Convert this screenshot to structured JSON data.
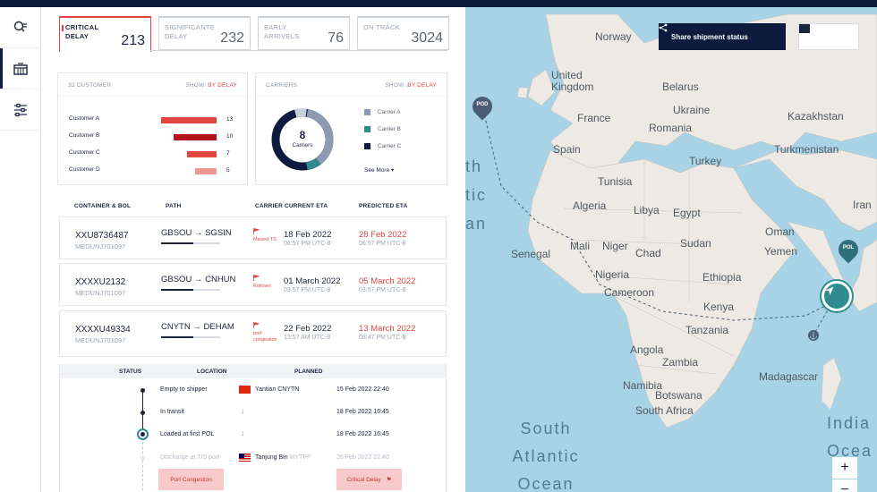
{
  "summary_cards": [
    {
      "label": "Critical delay",
      "value": "213"
    },
    {
      "label": "Significante delay",
      "value": "232"
    },
    {
      "label": "Early arrivels",
      "value": "76"
    },
    {
      "label": "On track",
      "value": "3024"
    }
  ],
  "customers_box": {
    "title": "32 CUSTOMER",
    "show_label": "SHOW:",
    "show_value": "BY DELAY",
    "items": [
      {
        "name": "Customer A",
        "value": 13,
        "color": "#e0453f"
      },
      {
        "name": "Customer B",
        "value": 10,
        "color": "#b3131b"
      },
      {
        "name": "Customer C",
        "value": 7,
        "color": "#e0453f"
      },
      {
        "name": "Customer D",
        "value": 5,
        "color": "#f19591"
      }
    ]
  },
  "carriers_box": {
    "title": "CARRIERS",
    "show_label": "SHOW:",
    "show_value": "BY DELAY",
    "donut_count": "8",
    "donut_label": "Carriers",
    "items": [
      {
        "name": "Carrier A",
        "color": "#8c9ab2"
      },
      {
        "name": "Carrier B",
        "color": "#2f8b8f"
      },
      {
        "name": "Carrier C",
        "color": "#0d1b3e"
      }
    ],
    "see_more": "See More"
  },
  "table": {
    "headers": [
      "CONTAINER & BOL",
      "PATH",
      "CARRIER CURRENT ETA",
      "PREDICTED ETA"
    ],
    "rows": [
      {
        "container": "XXU8736487",
        "bol": "MEDUNJ701097",
        "from": "GBSOU",
        "to": "SGSIN",
        "flag_text": "Missed TS",
        "eta_date": "18 Feb 2022",
        "eta_time": "06:57 PM UTC-8",
        "pred_date": "28 Feb 2022",
        "pred_time": "06:57 PM UTC-8"
      },
      {
        "container": "XXXXU2132",
        "bol": "MEDUNJ701097",
        "from": "GBSOU",
        "to": "CNHUN",
        "flag_text": "Rollover",
        "eta_date": "01 March 2022",
        "eta_time": "03:57 PM UTC-8",
        "pred_date": "05 March 2022",
        "pred_time": "03:57 PM UTC-8"
      },
      {
        "container": "XXXXU49334",
        "bol": "MEDUNJ701097",
        "from": "CNYTN",
        "to": "DEHAM",
        "flag_text": "port congestion",
        "eta_date": "22 Feb 2022",
        "eta_time": "13:57 AM UTC-8",
        "pred_date": "13 March 2022",
        "pred_time": "08:47 PM UTC-8"
      }
    ]
  },
  "detail": {
    "headers": [
      "STATUS",
      "LOCATION",
      "PLANNED"
    ],
    "steps": [
      {
        "status": "Empty to shipper",
        "location": "Yantian",
        "location_code": "CNYTN",
        "planned": "15 Feb 2022 22:40"
      },
      {
        "status": "In transit",
        "location": "",
        "location_code": "",
        "planned": "18 Feb 2022 16:45"
      },
      {
        "status": "Loaded at first POL",
        "location": "",
        "location_code": "",
        "planned": "18 Feb 2022 16:45"
      },
      {
        "status": "Discharge at T/S port",
        "location": "Tanjung Bin",
        "location_code": "MYTPP",
        "planned": "26 Feb 2022 22:40"
      }
    ],
    "tag_left": "Port Congestion",
    "tag_right": "Critical Delay"
  },
  "map": {
    "share_label": "Share shipment status",
    "pod_label": "POD",
    "pol_label": "POL",
    "countries": [
      "Norway",
      "United Kingdom",
      "France",
      "Spain",
      "Belarus",
      "Ukraine",
      "Romania",
      "Kazakhstan",
      "Turkey",
      "Turkmenistan",
      "Tunisia",
      "Algeria",
      "Libya",
      "Egypt",
      "Mali",
      "Niger",
      "Chad",
      "Sudan",
      "Senegal",
      "Nigeria",
      "Cameroon",
      "Ethiopia",
      "Kenya",
      "Tanzania",
      "Angola",
      "Zambia",
      "Namibia",
      "Botswana",
      "Madagascar",
      "South Africa",
      "Yemen",
      "Oman",
      "Iran"
    ],
    "oceans": [
      "South Atlantic Ocean",
      "India Ocea"
    ],
    "ocean_fragments": [
      "th",
      "tic",
      "an"
    ],
    "zoom_in": "+",
    "zoom_out": "−"
  }
}
